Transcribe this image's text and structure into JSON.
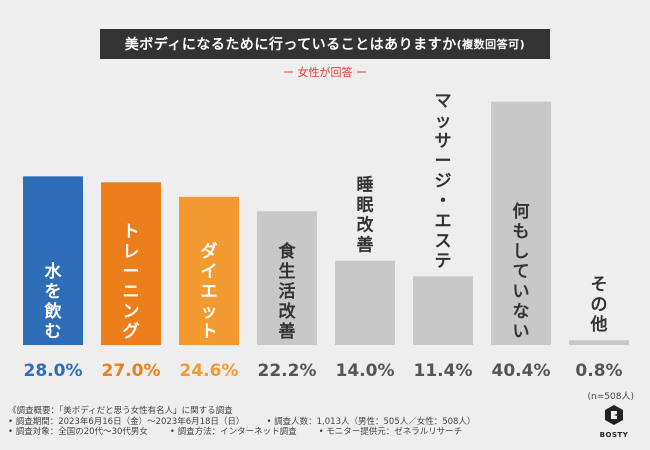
{
  "title": {
    "main": "美ボディになるために行っていることはありますか",
    "suffix": "(複数回答可)"
  },
  "subtitle": "ー 女性が回答 ー",
  "chart_data": {
    "type": "bar",
    "title": "美ボディになるために行っていることはありますか(複数回答可)",
    "categories": [
      "水を飲む",
      "トレーニング",
      "ダイエット",
      "食生活改善",
      "睡眠改善",
      "マッサージ・エステ",
      "何もしていない",
      "その他"
    ],
    "values": [
      28.0,
      27.0,
      24.6,
      22.2,
      14.0,
      11.4,
      40.4,
      0.8
    ],
    "value_labels": [
      "28.0%",
      "27.0%",
      "24.6%",
      "22.2%",
      "14.0%",
      "11.4%",
      "40.4%",
      "0.8%"
    ],
    "unit": "%",
    "ylim": [
      0,
      42
    ],
    "grid": false,
    "bar_colors": [
      "#2e6db8",
      "#ec7e1c",
      "#f39a30",
      "#c8c8c8",
      "#c8c8c8",
      "#c8c8c8",
      "#c8c8c8",
      "#c8c8c8"
    ],
    "label_colors": [
      "#ffffff",
      "#ffffff",
      "#ffffff",
      "#333333",
      "#333333",
      "#333333",
      "#333333",
      "#333333"
    ],
    "value_colors": [
      "#2e6db8",
      "#ec7e1c",
      "#f39a30",
      "#555555",
      "#555555",
      "#555555",
      "#555555",
      "#555555"
    ]
  },
  "sample_note": "(n=508人)",
  "footnotes": {
    "overview": "《調査概要：「美ボディだと思う女性有名人」に関する調査",
    "period": "• 調査期間：2023年6月16日（金）〜2023年6月18日（日）",
    "respondents": "• 調査人数：1,013人（男性：505人／女性：508人）",
    "target": "• 調査対象：全国の20代〜30代男女",
    "method": "• 調査方法：インターネット調査",
    "provider": "• モニター提供元：ゼネラルリサーチ"
  },
  "logo": {
    "text": "BOSTY"
  },
  "colors": {
    "title_bg": "#333333",
    "subtitle": "#e53935",
    "background": "#eeeeee"
  }
}
